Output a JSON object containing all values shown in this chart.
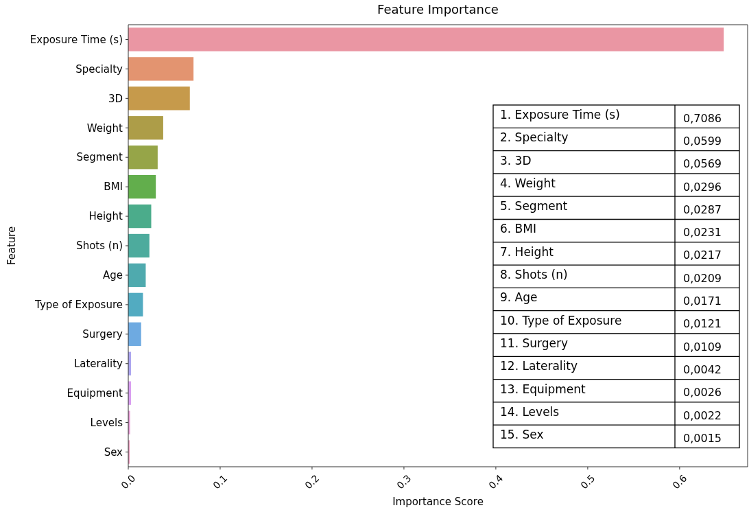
{
  "chart_data": {
    "type": "bar",
    "orientation": "horizontal",
    "title": "Feature Importance",
    "xlabel": "Importance Score",
    "ylabel": "Feature",
    "categories": [
      "Exposure Time (s)",
      "Specialty",
      "3D",
      "Weight",
      "Segment",
      "BMI",
      "Height",
      "Shots (n)",
      "Age",
      "Type of Exposure",
      "Surgery",
      "Laterality",
      "Equipment",
      "Levels",
      "Sex"
    ],
    "values": [
      0.648,
      0.071,
      0.067,
      0.038,
      0.032,
      0.03,
      0.025,
      0.023,
      0.019,
      0.016,
      0.014,
      0.003,
      0.003,
      0.002,
      0.0015
    ],
    "colors": [
      "#ea96a3",
      "#e39470",
      "#c69a4b",
      "#ad9d48",
      "#96a548",
      "#62ae4c",
      "#4bac8b",
      "#4dab9d",
      "#4faaae",
      "#52abc1",
      "#6eaae1",
      "#aca5ef",
      "#d99ef0",
      "#e69dd5",
      "#e99abd"
    ],
    "xlim": [
      0,
      0.674
    ],
    "xticks": [
      {
        "value": 0,
        "label": "0.0"
      },
      0.1,
      0.2,
      0.3,
      0.4,
      0.5,
      0.6
    ],
    "grid": false,
    "annotations": [
      "1. Exposure Time (s)",
      "0,7086",
      "2. Specialty",
      "0,0599",
      "3. 3D",
      "0,0569",
      "4. Weight",
      "0,0296",
      "5. Segment",
      "0,0287",
      "6. BMI",
      "0,0231",
      "7. Height",
      "0,0217",
      "8. Shots (n)",
      "0,0209",
      "9. Age",
      "0,0171",
      "10. Type of Exposure",
      "0,0121",
      "11. Surgery",
      "0,0109",
      "12. Laterality",
      "0,0042",
      "13. Equipment",
      "0,0026",
      "14. Levels",
      "0,0022",
      "15. Sex",
      "0,0015"
    ]
  }
}
